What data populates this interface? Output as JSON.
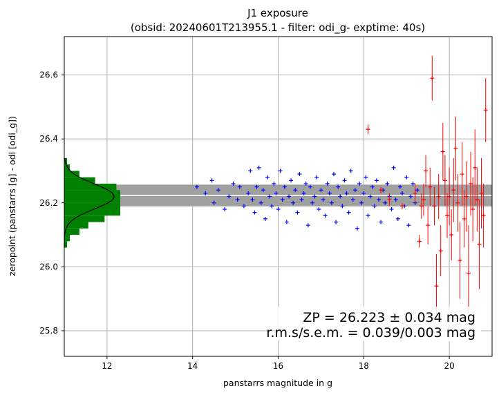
{
  "chart_data": {
    "type": "scatter",
    "title": "J1 exposure",
    "subtitle": "(obsid: 20240601T213955.1 - filter: odi_g- exptime: 40s)",
    "xlabel": "panstarrs magnitude in g",
    "ylabel": "zeropoint (panstarrs [g] - odi [odi_g])",
    "xlim": [
      11.0,
      21.0
    ],
    "ylim": [
      25.72,
      26.72
    ],
    "xticks": [
      "12",
      "14",
      "16",
      "18",
      "20"
    ],
    "yticks": [
      "25.8",
      "26.0",
      "26.2",
      "26.4",
      "26.6"
    ],
    "grid": true,
    "zeropoint": 26.223,
    "zp_band": [
      26.189,
      26.257
    ],
    "annotation_line1": "ZP = 26.223 ± 0.034 mag",
    "annotation_line2": "r.m.s/s.e.m. = 0.039/0.003 mag",
    "histogram": {
      "bin_edges": [
        26.06,
        26.08,
        26.1,
        26.12,
        26.14,
        26.16,
        26.18,
        26.2,
        26.22,
        26.24,
        26.26,
        26.28,
        26.3,
        26.32,
        26.34
      ],
      "heights": [
        0.05,
        0.1,
        0.27,
        0.43,
        0.72,
        1.0,
        1.0,
        1.0,
        1.0,
        0.93,
        0.55,
        0.27,
        0.1,
        0.05
      ],
      "gauss_mu": 26.22,
      "gauss_sigma": 0.039,
      "color": "#008000"
    },
    "series": [
      {
        "color": "#0000ff",
        "marker": "+",
        "x": [
          14.1,
          14.3,
          14.45,
          14.5,
          14.6,
          14.75,
          14.85,
          14.95,
          15.05,
          15.1,
          15.2,
          15.3,
          15.35,
          15.4,
          15.45,
          15.5,
          15.55,
          15.6,
          15.65,
          15.7,
          15.75,
          15.8,
          15.85,
          15.9,
          15.95,
          16.0,
          16.05,
          16.1,
          16.15,
          16.2,
          16.25,
          16.3,
          16.35,
          16.4,
          16.45,
          16.5,
          16.55,
          16.6,
          16.65,
          16.7,
          16.75,
          16.8,
          16.85,
          16.9,
          16.95,
          17.0,
          17.05,
          17.1,
          17.15,
          17.2,
          17.25,
          17.3,
          17.35,
          17.4,
          17.45,
          17.5,
          17.55,
          17.6,
          17.65,
          17.7,
          17.75,
          17.8,
          17.85,
          17.9,
          17.95,
          18.0,
          18.05,
          18.1,
          18.15,
          18.2,
          18.25,
          18.3,
          18.35,
          18.4,
          18.45,
          18.5,
          18.55,
          18.6,
          18.65,
          18.7,
          18.75,
          18.8,
          18.85,
          18.9,
          18.95,
          19.0,
          19.05,
          19.1,
          19.15,
          19.2,
          19.25
        ],
        "y": [
          26.25,
          26.23,
          26.27,
          26.2,
          26.24,
          26.18,
          26.22,
          26.26,
          26.21,
          26.25,
          26.19,
          26.23,
          26.3,
          26.21,
          26.17,
          26.25,
          26.31,
          26.2,
          26.24,
          26.15,
          26.28,
          26.22,
          26.19,
          26.26,
          26.23,
          26.18,
          26.3,
          26.21,
          26.25,
          26.14,
          26.22,
          26.27,
          26.2,
          26.24,
          26.17,
          26.29,
          26.21,
          26.23,
          26.26,
          26.13,
          26.25,
          26.2,
          26.22,
          26.28,
          26.18,
          26.24,
          26.21,
          26.16,
          26.26,
          26.23,
          26.2,
          26.29,
          26.14,
          26.25,
          26.22,
          26.19,
          26.27,
          26.23,
          26.17,
          26.3,
          26.21,
          26.24,
          26.12,
          26.26,
          26.2,
          26.23,
          26.28,
          26.16,
          26.22,
          26.25,
          26.19,
          26.27,
          26.21,
          26.14,
          26.24,
          26.2,
          26.26,
          26.22,
          26.18,
          26.31,
          26.21,
          26.15,
          26.25,
          26.23,
          26.19,
          26.28,
          26.13,
          26.22,
          26.26,
          26.2,
          26.24
        ]
      },
      {
        "color": "#ff0000",
        "marker": "+",
        "x": [
          18.1,
          18.4,
          18.6,
          18.9,
          19.2,
          19.3,
          19.35,
          19.4,
          19.45,
          19.5,
          19.55,
          19.6,
          19.65,
          19.7,
          19.75,
          19.8,
          19.85,
          19.9,
          19.95,
          20.0,
          20.05,
          20.1,
          20.15,
          20.2,
          20.25,
          20.3,
          20.35,
          20.4,
          20.45,
          20.5,
          20.55,
          20.6,
          20.65,
          20.7,
          20.75,
          20.8,
          20.85
        ],
        "y": [
          26.43,
          26.24,
          26.21,
          26.19,
          26.23,
          26.08,
          26.19,
          26.21,
          26.3,
          26.13,
          26.25,
          26.59,
          26.19,
          25.94,
          26.22,
          26.05,
          26.36,
          26.27,
          26.16,
          26.22,
          26.1,
          26.24,
          26.37,
          26.2,
          26.02,
          26.29,
          26.15,
          26.22,
          25.98,
          26.26,
          26.18,
          26.31,
          26.21,
          26.07,
          26.23,
          26.16,
          26.49
        ],
        "yerr": [
          0.015,
          0.01,
          0.02,
          0.01,
          0.03,
          0.02,
          0.04,
          0.05,
          0.05,
          0.06,
          0.06,
          0.07,
          0.06,
          0.1,
          0.07,
          0.08,
          0.09,
          0.08,
          0.07,
          0.09,
          0.08,
          0.1,
          0.1,
          0.09,
          0.12,
          0.1,
          0.09,
          0.11,
          0.15,
          0.1,
          0.1,
          0.12,
          0.1,
          0.14,
          0.11,
          0.1,
          0.1
        ]
      }
    ]
  }
}
